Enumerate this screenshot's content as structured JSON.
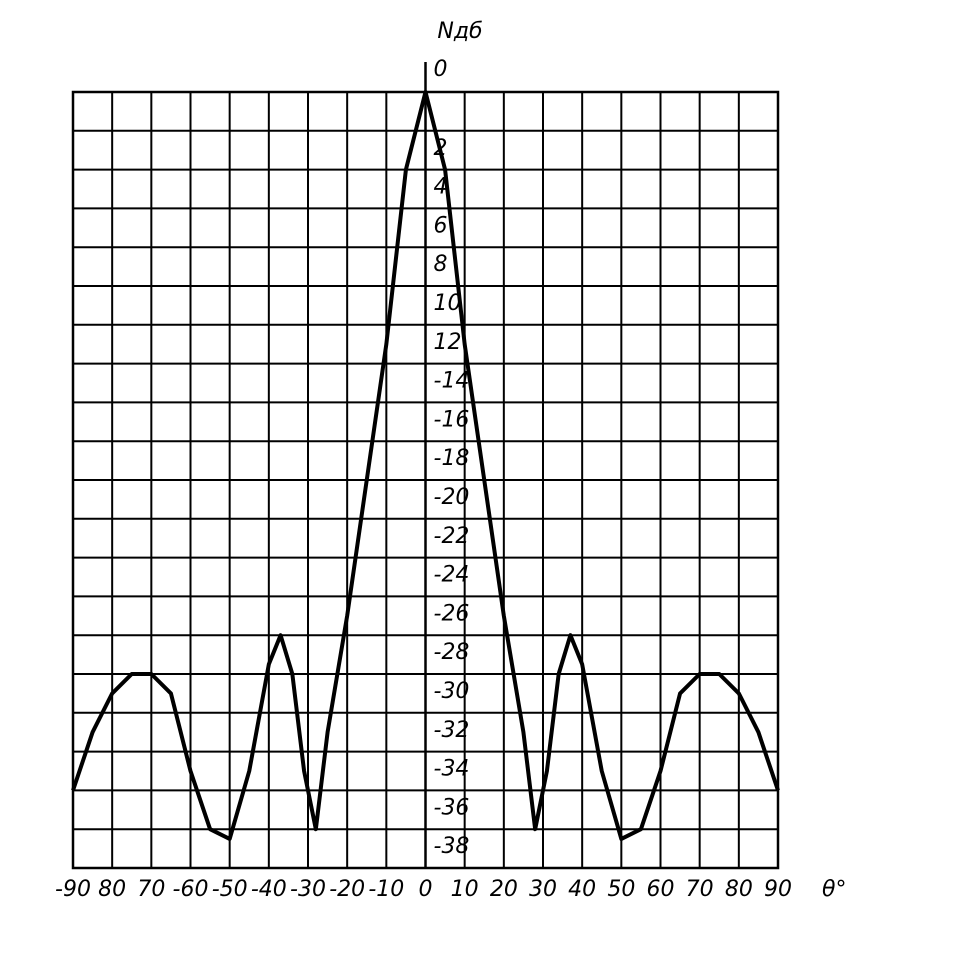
{
  "chart_data": {
    "type": "line",
    "x_label": "θ°",
    "y_label": "Nдб",
    "x": [
      -90,
      -85,
      -80,
      -75,
      -70,
      -65,
      -60,
      -55,
      -50,
      -45,
      -40,
      -37,
      -34,
      -31,
      -28,
      -25,
      -20,
      -15,
      -10,
      -5,
      0,
      5,
      10,
      15,
      20,
      25,
      28,
      31,
      34,
      37,
      40,
      45,
      50,
      55,
      60,
      65,
      70,
      75,
      80,
      85,
      90
    ],
    "series": [
      {
        "name": null,
        "color": "#000000",
        "values": [
          -36,
          -33,
          -31,
          -30,
          -30,
          -31,
          -35,
          -38,
          -38.5,
          -35,
          -29.5,
          -28,
          -30,
          -35,
          -38,
          -33,
          -27,
          -20,
          -13,
          -4,
          0,
          -4,
          -13,
          -20,
          -27,
          -33,
          -38,
          -35,
          -30,
          -28,
          -29.5,
          -35,
          -38.5,
          -38,
          -35,
          -31,
          -30,
          -30,
          -31,
          -33,
          -36
        ]
      }
    ],
    "xlim": [
      -90,
      90
    ],
    "xticks": [
      -90,
      {
        "value": -80,
        "label": "80"
      },
      {
        "value": -70,
        "label": "70"
      },
      -60,
      -50,
      -40,
      -30,
      -20,
      -10,
      0,
      10,
      20,
      30,
      40,
      50,
      60,
      70,
      80,
      90
    ],
    "ylim": [
      -40,
      0
    ],
    "yticks": [
      0,
      {
        "value": -2,
        "label": "2"
      },
      {
        "value": -4,
        "label": "4"
      },
      {
        "value": -6,
        "label": "6"
      },
      {
        "value": -8,
        "label": "8"
      },
      {
        "value": -10,
        "label": "10"
      },
      {
        "value": -12,
        "label": "12"
      },
      -14,
      -16,
      -18,
      -20,
      -22,
      -24,
      -26,
      -28,
      -30,
      -32,
      -34,
      -36,
      -38
    ],
    "grid": true
  }
}
